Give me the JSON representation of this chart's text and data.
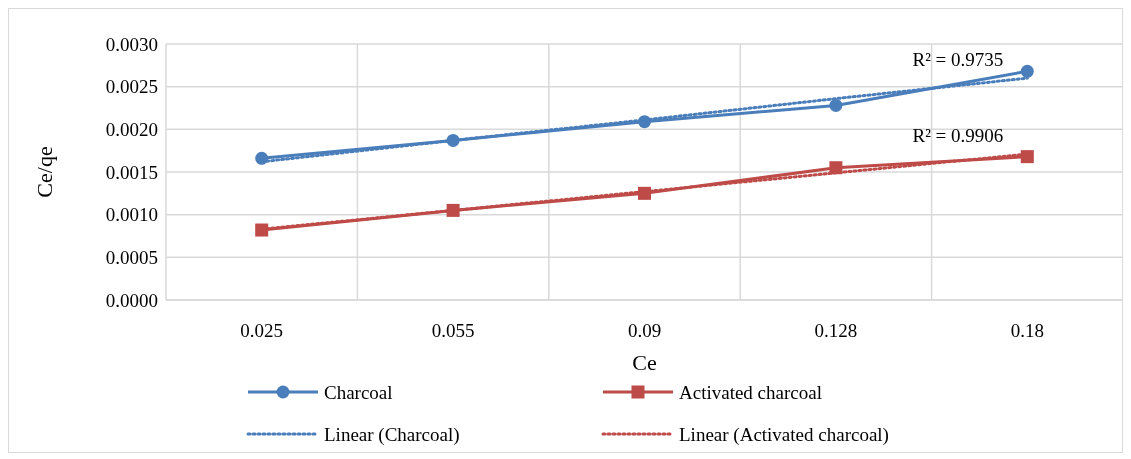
{
  "chart_data": {
    "type": "line",
    "xlabel": "Ce",
    "ylabel": "Ce/qe",
    "categories": [
      "0.025",
      "0.055",
      "0.09",
      "0.128",
      "0.18"
    ],
    "ylim": [
      0,
      0.003
    ],
    "yticks": [
      {
        "value": 0,
        "label": "0.0000"
      },
      {
        "value": 0.0005,
        "label": "0.0005"
      },
      {
        "value": 0.001,
        "label": "0.0010"
      },
      {
        "value": 0.0015,
        "label": "0.0015"
      },
      {
        "value": 0.002,
        "label": "0.0020"
      },
      {
        "value": 0.0025,
        "label": "0.0025"
      },
      {
        "value": 0.003,
        "label": "0.0030"
      }
    ],
    "grid": true,
    "legend": "bottom",
    "series": [
      {
        "name": "Charcoal",
        "color": "#4a7ebb",
        "marker": "circle",
        "line_style": "solid",
        "values": [
          0.00166,
          0.00187,
          0.00209,
          0.00228,
          0.00268
        ]
      },
      {
        "name": "Activated charcoal",
        "color": "#be4b48",
        "marker": "square",
        "line_style": "solid",
        "values": [
          0.00082,
          0.00105,
          0.00125,
          0.00155,
          0.00168
        ]
      },
      {
        "name": "Linear (Charcoal)",
        "color": "#4a7ebb",
        "marker": "none",
        "line_style": "dotted",
        "values": [
          0.00162,
          0.00187,
          0.00211,
          0.00236,
          0.0026
        ]
      },
      {
        "name": "Linear (Activated charcoal)",
        "color": "#be4b48",
        "marker": "none",
        "line_style": "dotted",
        "values": [
          0.00083,
          0.00105,
          0.00127,
          0.00149,
          0.00171
        ]
      }
    ],
    "annotations": [
      {
        "text": "R² = 0.9735",
        "x": "0.18",
        "y": 0.0026
      },
      {
        "text": "R² = 0.9906",
        "x": "0.18",
        "y": 0.00171
      }
    ]
  }
}
